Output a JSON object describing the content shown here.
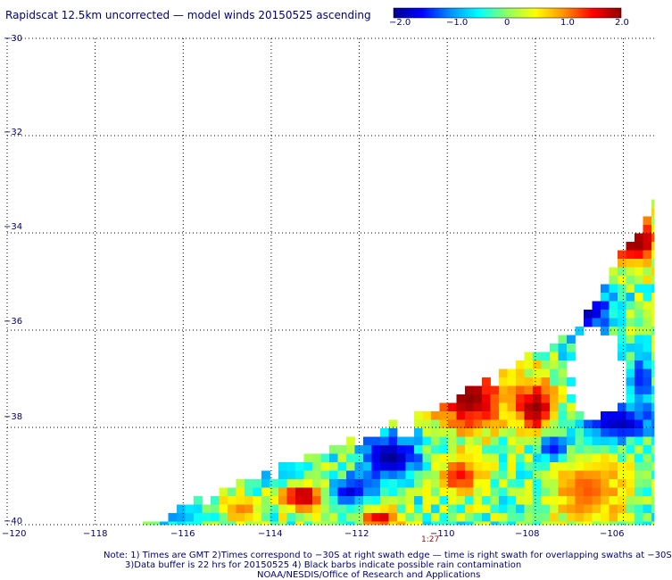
{
  "title": "Rapidscat 12.5km uncorrected — model winds 20150525 ascending",
  "colorbar": {
    "labels": [
      "−2.0",
      "−1.0",
      "0",
      "1.0",
      "2.0"
    ],
    "vmin": -2.0,
    "vmax": 2.0,
    "stops": [
      "#000090",
      "#0000ff",
      "#0090ff",
      "#00ffff",
      "#90ff60",
      "#ffff00",
      "#ff9000",
      "#ff0000",
      "#900000"
    ]
  },
  "time_label": "1:27",
  "notes": [
    "Note: 1) Times are GMT 2)Times correspond to −30S at right swath edge — time is right swath for overlapping swaths at −30S",
    "3)Data buffer is 22 hrs for 20150525 4) Black barbs indicate possible rain contamination",
    "NOAA/NESDIS/Office of Research and Applications"
  ],
  "chart_data": {
    "type": "heatmap",
    "title": "Rapidscat 12.5km uncorrected — model winds 20150525 ascending",
    "x_ticks": [
      {
        "value": -120,
        "label": "−120"
      },
      {
        "value": -118,
        "label": "−118"
      },
      {
        "value": -116,
        "label": "−116"
      },
      {
        "value": -114,
        "label": "−114"
      },
      {
        "value": -112,
        "label": "−112"
      },
      {
        "value": -110,
        "label": "−110"
      },
      {
        "value": -108,
        "label": "−108"
      },
      {
        "value": -106,
        "label": "−106"
      }
    ],
    "y_ticks": [
      {
        "value": -30,
        "label": "−30"
      },
      {
        "value": -32,
        "label": "−32"
      },
      {
        "value": -34,
        "label": "−34"
      },
      {
        "value": -36,
        "label": "−36"
      },
      {
        "value": -38,
        "label": "−38"
      },
      {
        "value": -40,
        "label": "−40"
      }
    ],
    "xlim": [
      -120,
      -105.3
    ],
    "ylim": [
      -40,
      -30
    ],
    "grid": true,
    "colorbar_range": [
      -2.0,
      2.0
    ],
    "swath_edge": [
      [
        -117.2,
        -40
      ],
      [
        -112,
        -38.2
      ],
      [
        -109,
        -37
      ],
      [
        -107,
        -35.8
      ],
      [
        -105.3,
        -33.3
      ]
    ],
    "regions": [
      {
        "value": 2.0,
        "center": [
          -109.5,
          -37.4
        ],
        "radius": [
          0.9,
          0.7
        ]
      },
      {
        "value": 2.0,
        "center": [
          -108.0,
          -37.6
        ],
        "radius": [
          0.5,
          0.6
        ]
      },
      {
        "value": 1.9,
        "center": [
          -108.8,
          -36.5
        ],
        "radius": [
          0.5,
          0.3
        ]
      },
      {
        "value": 2.0,
        "center": [
          -105.7,
          -34.2
        ],
        "radius": [
          0.6,
          0.5
        ]
      },
      {
        "value": 2.0,
        "center": [
          -113.3,
          -39.4
        ],
        "radius": [
          0.6,
          0.3
        ]
      },
      {
        "value": 1.8,
        "center": [
          -111.5,
          -39.9
        ],
        "radius": [
          0.5,
          0.2
        ]
      },
      {
        "value": 1.5,
        "center": [
          -109.7,
          -39.0
        ],
        "radius": [
          0.6,
          0.4
        ]
      },
      {
        "value": 1.2,
        "center": [
          -106.8,
          -39.3
        ],
        "radius": [
          0.9,
          0.8
        ]
      },
      {
        "value": 1.1,
        "center": [
          -114.7,
          -39.7
        ],
        "radius": [
          0.5,
          0.3
        ]
      },
      {
        "value": -2.0,
        "center": [
          -111.3,
          -38.6
        ],
        "radius": [
          0.7,
          0.5
        ]
      },
      {
        "value": -1.9,
        "center": [
          -106.9,
          -35.6
        ],
        "radius": [
          0.7,
          0.5
        ]
      },
      {
        "value": -1.8,
        "center": [
          -106.1,
          -37.9
        ],
        "radius": [
          0.9,
          0.4
        ]
      },
      {
        "value": -1.7,
        "center": [
          -112.2,
          -39.3
        ],
        "radius": [
          0.5,
          0.3
        ]
      },
      {
        "value": -1.5,
        "center": [
          -107.6,
          -38.4
        ],
        "radius": [
          0.4,
          0.3
        ]
      },
      {
        "value": -1.0,
        "center": [
          -114.0,
          -38.9
        ],
        "radius": [
          0.7,
          0.3
        ]
      },
      {
        "value": -1.0,
        "center": [
          -116.2,
          -39.8
        ],
        "radius": [
          0.8,
          0.3
        ]
      },
      {
        "value": -1.4,
        "center": [
          -105.6,
          -37.0
        ],
        "radius": [
          0.3,
          0.6
        ]
      }
    ],
    "missing_regions": [
      {
        "center": [
          -106.6,
          -36.9
        ],
        "radius": [
          0.65,
          0.9
        ]
      },
      {
        "center": [
          -110.9,
          -38.0
        ],
        "radius": [
          0.18,
          0.18
        ]
      }
    ]
  }
}
